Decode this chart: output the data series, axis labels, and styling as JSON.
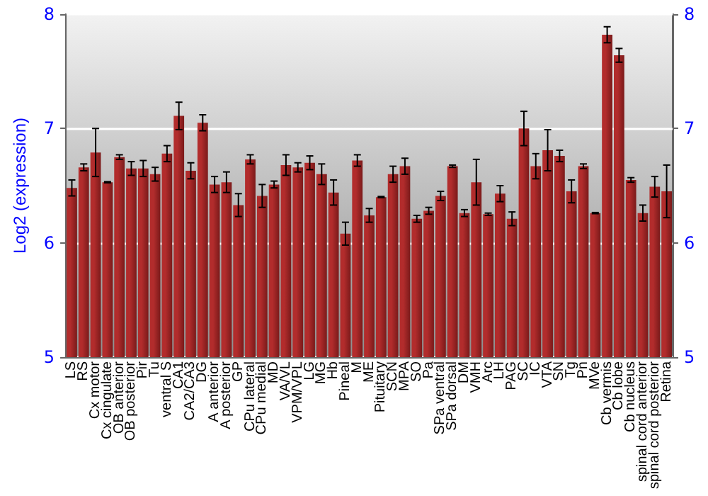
{
  "chart_data": {
    "type": "bar",
    "ylabel": "Log2 (expression)",
    "categories": [
      "LS",
      "RS",
      "Cx motor",
      "Cx cingulate",
      "OB anterior",
      "OB posterior",
      "Pir",
      "Tu",
      "ventral S",
      "CA1",
      "CA2/CA3",
      "DG",
      "A anterior",
      "A posterior",
      "GP",
      "CPu lateral",
      "CPu medial",
      "MD",
      "VA/VL",
      "VPM/VPL",
      "LG",
      "MG",
      "Hb",
      "Pineal",
      "M",
      "ME",
      "Pituitary",
      "SCN",
      "MPA",
      "SO",
      "Pa",
      "SPa ventral",
      "SPa dorsal",
      "DM",
      "VMH",
      "Arc",
      "LH",
      "PAG",
      "SC",
      "IC",
      "VTA",
      "SN",
      "Tg",
      "Pn",
      "MVe",
      "Cb vermis",
      "Cb lobe",
      "Cb nucleus",
      "spinal cord anterior",
      "spinal cord posterior",
      "Retina"
    ],
    "values": [
      6.48,
      6.66,
      6.79,
      6.53,
      6.75,
      6.65,
      6.65,
      6.6,
      6.78,
      7.11,
      6.63,
      7.05,
      6.51,
      6.53,
      6.33,
      6.73,
      6.41,
      6.51,
      6.68,
      6.66,
      6.7,
      6.6,
      6.44,
      6.08,
      6.72,
      6.24,
      6.4,
      6.6,
      6.67,
      6.21,
      6.28,
      6.41,
      6.67,
      6.26,
      6.53,
      6.25,
      6.43,
      6.21,
      7.0,
      6.67,
      6.81,
      6.76,
      6.45,
      6.67,
      6.26,
      7.82,
      7.64,
      6.55,
      6.26,
      6.49,
      6.45
    ],
    "errors": [
      0.07,
      0.03,
      0.21,
      0.005,
      0.02,
      0.06,
      0.07,
      0.06,
      0.07,
      0.12,
      0.07,
      0.07,
      0.07,
      0.09,
      0.1,
      0.04,
      0.1,
      0.03,
      0.09,
      0.04,
      0.06,
      0.09,
      0.11,
      0.1,
      0.05,
      0.06,
      0.005,
      0.07,
      0.07,
      0.03,
      0.03,
      0.04,
      0.01,
      0.03,
      0.2,
      0.01,
      0.07,
      0.06,
      0.15,
      0.11,
      0.18,
      0.05,
      0.1,
      0.02,
      0.005,
      0.07,
      0.06,
      0.02,
      0.07,
      0.09,
      0.23
    ],
    "color": "#b22c2c",
    "ylim": [
      5,
      8
    ],
    "yticks": [
      5,
      6,
      7,
      8
    ],
    "y2lim": [
      5,
      8
    ],
    "y2ticks": [
      5,
      6,
      7,
      8
    ],
    "grid": "y"
  }
}
